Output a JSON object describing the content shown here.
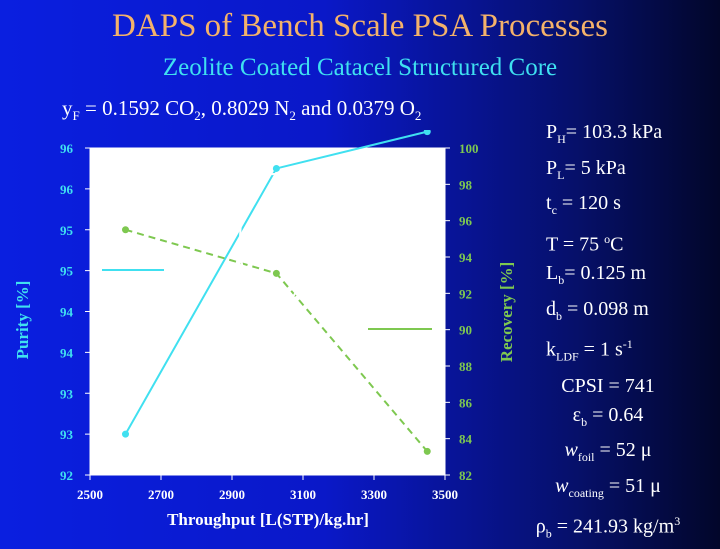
{
  "title": "DAPS of Bench Scale PSA Processes",
  "subtitle": "Zeolite Coated Catacel Structured Core",
  "feed": {
    "y_symbol": "y",
    "y_sub": "F",
    "eq_co2": " = 0.1592 CO",
    "co2_sub": "2",
    "n2_part": ", 0.8029 N",
    "n2_sub": "2",
    "o2_part": " and 0.0379 O",
    "o2_sub": "2"
  },
  "params": {
    "ph_main": "P",
    "ph_sub": "H",
    "ph_val": "= 103.3 kPa",
    "pl_main": "P",
    "pl_sub": "L",
    "pl_val": "= 5 kPa",
    "tc_main": "t",
    "tc_sub": "c",
    "tc_val": " = 120 s",
    "t_main": "T = 75 ",
    "t_sup": "o",
    "t_unit": "C",
    "lb_main": "L",
    "lb_sub": "b",
    "lb_val": "= 0.125 m",
    "db_main": "d",
    "db_sub": "b",
    "db_val": " = 0.098 m",
    "k_main": "k",
    "k_sub": "LDF",
    "k_val": " = 1 s",
    "k_sup": "-1"
  },
  "params2": {
    "cpsi": "CPSI = 741",
    "eps_main": "ε",
    "eps_sub": "b",
    "eps_val": " = 0.64",
    "wf_main": "w",
    "wf_sub": "foil",
    "wf_val": " = 52 μ",
    "wc_main": "w",
    "wc_sub": "coating",
    "wc_val": " = 51 μ",
    "rho_main": "ρ",
    "rho_sub": "b",
    "rho_val": " = 241.93 kg/m",
    "rho_sup": "3"
  },
  "chart_data": {
    "type": "line",
    "xlabel": "Throughput [L(STP)/kg.hr]",
    "ylabel": "Purity [%]",
    "y2label": "Recovery [%]",
    "xlim": [
      2500,
      3500
    ],
    "xticks": [
      "2500",
      "2700",
      "2900",
      "3100",
      "3300",
      "3500"
    ],
    "yticks": [
      "92",
      "93",
      "93",
      "94",
      "94",
      "95",
      "95",
      "96",
      "96"
    ],
    "y2lim": [
      82,
      100
    ],
    "y2ticks": [
      "82",
      "84",
      "86",
      "88",
      "90",
      "92",
      "94",
      "96",
      "98",
      "100"
    ],
    "x": [
      2600,
      3025,
      3450
    ],
    "purity": [
      92.5,
      95.75,
      96.2
    ],
    "recovery": [
      95.5,
      93.1,
      83.3
    ],
    "colors": {
      "purity": "#40e0f0",
      "recovery": "#7ec850"
    }
  }
}
